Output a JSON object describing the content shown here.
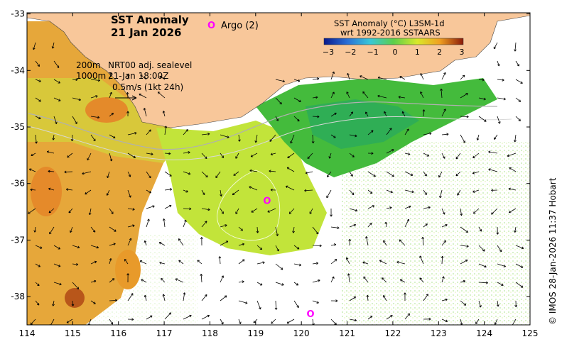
{
  "title": {
    "line1": "SST Anomaly",
    "line2": "21 Jan 2026"
  },
  "legend": {
    "argo_marker": "O",
    "argo_label": "Argo (2)",
    "title_line1": "SST Anomaly (°C) L3SM-1d",
    "title_line2": "wrt 1992-2016 SSTAARS",
    "ticks": [
      "-3",
      "-2",
      "-1",
      "0",
      "1",
      "2",
      "3"
    ],
    "colors": [
      "#0a1a8c",
      "#2a6fd6",
      "#38c7d8",
      "#5ccf4a",
      "#d8e82a",
      "#f0a020",
      "#d84a14",
      "#8a1a0a"
    ]
  },
  "info": {
    "contour_200": "200m",
    "contour_1000": "1000m",
    "source": "NRT00 adj. sealevel",
    "time": "21-Jan 18:00Z",
    "scale": "0.5m/s (1kt 24h)"
  },
  "axes": {
    "x_ticks": [
      "114",
      "115",
      "116",
      "117",
      "118",
      "119",
      "120",
      "121",
      "122",
      "123",
      "124",
      "125"
    ],
    "y_ticks": [
      "-33",
      "-34",
      "-35",
      "-36",
      "-37",
      "-38"
    ]
  },
  "credit": "© IMOS 28-Jan-2026 11:37 Hobart",
  "argo_floats": [
    {
      "label": "O",
      "lon": 119.25,
      "lat": -36.3
    },
    {
      "label": "O",
      "lon": 120.2,
      "lat": -38.3
    }
  ],
  "colors": {
    "land": "#f8c79a",
    "argo": "#ff00ff",
    "warm": "#e8a030",
    "neutral": "#c8e83a",
    "cool": "#3cb83c"
  }
}
